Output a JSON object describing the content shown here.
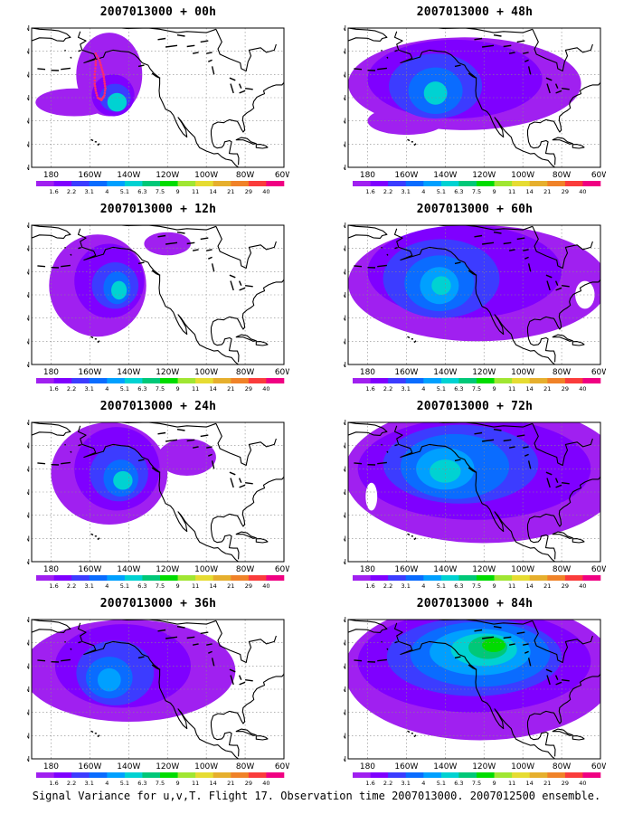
{
  "panels": [
    {
      "title": "2007013000 + 00h",
      "lead_hours": 0
    },
    {
      "title": "2007013000 + 48h",
      "lead_hours": 48
    },
    {
      "title": "2007013000 + 12h",
      "lead_hours": 12
    },
    {
      "title": "2007013000 + 60h",
      "lead_hours": 60
    },
    {
      "title": "2007013000 + 24h",
      "lead_hours": 24
    },
    {
      "title": "2007013000 + 72h",
      "lead_hours": 72
    },
    {
      "title": "2007013000 + 36h",
      "lead_hours": 36
    },
    {
      "title": "2007013000 + 84h",
      "lead_hours": 84
    }
  ],
  "axes": {
    "lat_labels": [
      "10N",
      "20N",
      "30N",
      "40N",
      "50N",
      "60N",
      "70N"
    ],
    "lon_labels": [
      "180",
      "160W",
      "140W",
      "120W",
      "100W",
      "80W",
      "60W"
    ],
    "lat_range": [
      10,
      70
    ],
    "lon_range": [
      -190,
      -60
    ]
  },
  "colorbar": {
    "labels": [
      "1.6",
      "2.2",
      "3.1",
      "4",
      "5.1",
      "6.3",
      "7.5",
      "9",
      "11",
      "14",
      "21",
      "29",
      "40"
    ],
    "colors": [
      "#a020f0",
      "#7f00ff",
      "#3c3cff",
      "#0a6cff",
      "#00a0ff",
      "#00d2d2",
      "#00c878",
      "#00dc00",
      "#a0e632",
      "#e6dc32",
      "#e6af2d",
      "#f08228",
      "#fa3c3c",
      "#f00082"
    ]
  },
  "caption": "Signal Variance for u,v,T. Flight 17. Observation time 2007013000. 2007012500 ensemble."
}
